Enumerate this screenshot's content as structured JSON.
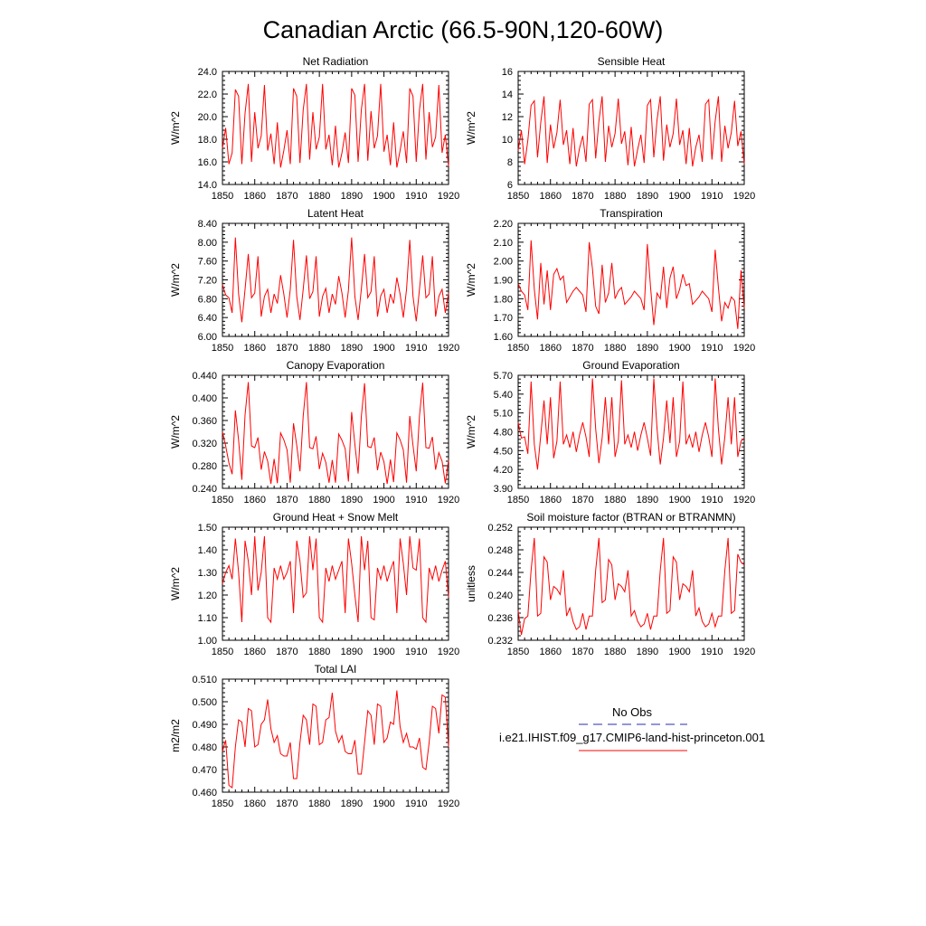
{
  "title": "Canadian Arctic (66.5-90N,120-60W)",
  "colors": {
    "model": "#ff0000",
    "obs": "#2b2bb0",
    "frame": "#000000"
  },
  "legend": {
    "obs_label": "No Obs",
    "model_label": "i.e21.IHIST.f09_g17.CMIP6-land-hist-princeton.001"
  },
  "chart_data": [
    {
      "type": "line",
      "title": "Net Radiation",
      "ylabel": "W/m^2",
      "xlim": [
        1850,
        1920
      ],
      "ylim": [
        14.0,
        24.0
      ],
      "xticks": [
        "1850",
        "1860",
        "1870",
        "1880",
        "1890",
        "1900",
        "1910",
        "1920"
      ],
      "yticks": [
        "14.0",
        "16.0",
        "18.0",
        "20.0",
        "22.0",
        "24.0"
      ],
      "x_start": 1850,
      "series": [
        {
          "values": [
            17.2,
            19.0,
            15.8,
            16.8,
            22.4,
            21.8,
            15.8,
            20.3,
            22.9,
            16.0,
            20.4,
            17.2,
            18.3,
            22.8,
            17.0,
            18.5,
            15.8,
            19.5,
            15.5,
            17.0,
            18.8,
            15.8,
            22.5,
            21.8,
            15.9,
            20.6,
            22.9,
            16.2,
            20.4,
            17.1,
            18.2,
            22.9,
            17.1,
            18.4,
            15.7,
            19.2,
            15.5,
            16.8,
            18.6,
            15.9,
            22.5,
            21.9,
            16.0,
            20.6,
            22.9,
            16.1,
            20.5,
            17.2,
            18.3,
            22.9,
            16.9,
            18.4,
            15.7,
            19.5,
            15.5,
            17.0,
            18.7,
            15.9,
            22.5,
            21.8,
            16.0,
            20.6,
            22.9,
            16.2,
            20.4,
            17.3,
            18.2,
            22.8,
            16.8,
            18.4,
            15.6
          ]
        }
      ]
    },
    {
      "type": "line",
      "title": "Sensible Heat",
      "ylabel": "W/m^2",
      "xlim": [
        1850,
        1920
      ],
      "ylim": [
        6,
        16
      ],
      "xticks": [
        "1850",
        "1860",
        "1870",
        "1880",
        "1890",
        "1900",
        "1910",
        "1920"
      ],
      "yticks": [
        "6",
        "8",
        "10",
        "12",
        "14",
        "16"
      ],
      "x_start": 1850,
      "series": [
        {
          "values": [
            9.0,
            10.8,
            7.8,
            9.9,
            13.0,
            13.4,
            8.4,
            11.5,
            13.8,
            7.9,
            11.3,
            9.2,
            10.6,
            13.5,
            9.5,
            10.8,
            7.8,
            11.0,
            7.6,
            9.2,
            10.3,
            8.0,
            13.1,
            13.5,
            8.3,
            11.6,
            13.8,
            8.0,
            11.2,
            9.3,
            10.5,
            13.6,
            9.6,
            10.7,
            7.7,
            11.1,
            7.6,
            9.1,
            10.4,
            7.9,
            13.0,
            13.5,
            8.4,
            11.7,
            13.8,
            8.1,
            11.3,
            9.3,
            10.5,
            13.6,
            9.5,
            10.8,
            7.8,
            11.0,
            7.6,
            9.3,
            10.4,
            8.0,
            13.1,
            13.5,
            8.2,
            11.6,
            13.8,
            8.0,
            11.2,
            9.2,
            10.6,
            13.4,
            9.4,
            10.7,
            7.8
          ]
        }
      ]
    },
    {
      "type": "line",
      "title": "Latent Heat",
      "ylabel": "W/m^2",
      "xlim": [
        1850,
        1920
      ],
      "ylim": [
        6.0,
        8.4
      ],
      "xticks": [
        "1850",
        "1860",
        "1870",
        "1880",
        "1890",
        "1900",
        "1910",
        "1920"
      ],
      "yticks": [
        "6.00",
        "6.40",
        "6.80",
        "7.20",
        "7.60",
        "8.00",
        "8.40"
      ],
      "x_start": 1850,
      "series": [
        {
          "values": [
            7.1,
            6.88,
            6.82,
            6.5,
            8.1,
            6.9,
            6.3,
            7.0,
            7.75,
            6.82,
            6.92,
            7.7,
            6.42,
            6.85,
            7.0,
            6.5,
            6.9,
            6.7,
            7.3,
            6.9,
            6.4,
            7.0,
            8.05,
            6.85,
            6.35,
            7.0,
            7.72,
            6.8,
            6.95,
            7.7,
            6.42,
            6.85,
            7.02,
            6.5,
            6.9,
            6.68,
            7.28,
            6.92,
            6.4,
            6.98,
            8.1,
            6.85,
            6.35,
            7.0,
            7.75,
            6.82,
            6.95,
            7.7,
            6.42,
            6.86,
            7.0,
            6.5,
            6.9,
            6.7,
            7.25,
            6.9,
            6.4,
            7.0,
            8.05,
            6.85,
            6.32,
            7.0,
            7.72,
            6.82,
            6.9,
            7.7,
            6.42,
            6.85,
            7.0,
            6.5,
            6.92
          ]
        }
      ]
    },
    {
      "type": "line",
      "title": "Transpiration",
      "ylabel": "W/m^2",
      "xlim": [
        1850,
        1920
      ],
      "ylim": [
        1.6,
        2.2
      ],
      "xticks": [
        "1850",
        "1860",
        "1870",
        "1880",
        "1890",
        "1900",
        "1910",
        "1920"
      ],
      "yticks": [
        "1.60",
        "1.70",
        "1.80",
        "1.90",
        "2.00",
        "2.10",
        "2.20"
      ],
      "x_start": 1850,
      "series": [
        {
          "values": [
            1.88,
            1.84,
            1.82,
            1.74,
            2.11,
            1.85,
            1.69,
            1.99,
            1.77,
            1.95,
            1.74,
            1.93,
            1.96,
            1.9,
            1.92,
            1.78,
            1.81,
            1.84,
            1.86,
            1.84,
            1.82,
            1.73,
            2.1,
            1.96,
            1.76,
            1.72,
            1.98,
            1.78,
            1.83,
            1.99,
            1.8,
            1.84,
            1.86,
            1.77,
            1.79,
            1.81,
            1.84,
            1.82,
            1.8,
            1.74,
            2.09,
            1.86,
            1.66,
            1.83,
            1.8,
            1.97,
            1.75,
            1.91,
            1.97,
            1.8,
            1.85,
            1.93,
            1.87,
            1.88,
            1.77,
            1.79,
            1.81,
            1.84,
            1.82,
            1.8,
            1.73,
            2.06,
            1.86,
            1.68,
            1.78,
            1.75,
            1.81,
            1.79,
            1.64,
            1.95,
            1.75
          ]
        }
      ]
    },
    {
      "type": "line",
      "title": "Canopy Evaporation",
      "ylabel": "W/m^2",
      "xlim": [
        1850,
        1920
      ],
      "ylim": [
        0.24,
        0.44
      ],
      "xticks": [
        "1850",
        "1860",
        "1870",
        "1880",
        "1890",
        "1900",
        "1910",
        "1920"
      ],
      "yticks": [
        "0.240",
        "0.280",
        "0.320",
        "0.360",
        "0.400",
        "0.440"
      ],
      "x_start": 1850,
      "series": [
        {
          "values": [
            0.34,
            0.315,
            0.285,
            0.265,
            0.378,
            0.325,
            0.255,
            0.37,
            0.428,
            0.315,
            0.312,
            0.33,
            0.273,
            0.305,
            0.288,
            0.248,
            0.292,
            0.249,
            0.338,
            0.326,
            0.308,
            0.25,
            0.355,
            0.316,
            0.27,
            0.368,
            0.428,
            0.312,
            0.31,
            0.332,
            0.274,
            0.302,
            0.286,
            0.25,
            0.29,
            0.25,
            0.336,
            0.325,
            0.31,
            0.252,
            0.375,
            0.318,
            0.266,
            0.367,
            0.426,
            0.314,
            0.312,
            0.33,
            0.272,
            0.304,
            0.287,
            0.248,
            0.291,
            0.251,
            0.338,
            0.326,
            0.308,
            0.25,
            0.368,
            0.316,
            0.27,
            0.368,
            0.427,
            0.312,
            0.311,
            0.331,
            0.273,
            0.303,
            0.288,
            0.249,
            0.29
          ]
        }
      ]
    },
    {
      "type": "line",
      "title": "Ground Evaporation",
      "ylabel": "W/m^2",
      "xlim": [
        1850,
        1920
      ],
      "ylim": [
        3.9,
        5.7
      ],
      "xticks": [
        "1850",
        "1860",
        "1870",
        "1880",
        "1890",
        "1900",
        "1910",
        "1920"
      ],
      "yticks": [
        "3.90",
        "4.20",
        "4.50",
        "4.80",
        "5.10",
        "5.40",
        "5.70"
      ],
      "x_start": 1850,
      "series": [
        {
          "values": [
            4.95,
            4.7,
            4.72,
            4.45,
            5.6,
            4.6,
            4.2,
            4.75,
            5.3,
            4.6,
            5.35,
            4.38,
            4.65,
            5.6,
            4.6,
            4.75,
            4.55,
            4.8,
            4.48,
            4.75,
            4.95,
            4.72,
            4.4,
            5.65,
            4.85,
            4.3,
            4.7,
            5.35,
            4.6,
            5.35,
            4.4,
            4.65,
            5.62,
            4.6,
            4.75,
            4.55,
            4.8,
            4.5,
            4.75,
            4.95,
            4.7,
            4.42,
            5.65,
            4.85,
            4.28,
            4.7,
            5.3,
            4.62,
            5.35,
            4.4,
            4.65,
            5.6,
            4.6,
            4.75,
            4.55,
            4.8,
            4.48,
            4.75,
            4.95,
            4.72,
            4.4,
            5.65,
            4.85,
            4.28,
            4.72,
            5.35,
            4.6,
            5.35,
            4.4,
            4.65,
            4.7
          ]
        }
      ]
    },
    {
      "type": "line",
      "title": "Ground Heat + Snow Melt",
      "ylabel": "W/m^2",
      "xlim": [
        1850,
        1920
      ],
      "ylim": [
        1.0,
        1.5
      ],
      "xticks": [
        "1850",
        "1860",
        "1870",
        "1880",
        "1890",
        "1900",
        "1910",
        "1920"
      ],
      "yticks": [
        "1.00",
        "1.10",
        "1.20",
        "1.30",
        "1.40",
        "1.50"
      ],
      "x_start": 1850,
      "series": [
        {
          "values": [
            1.25,
            1.3,
            1.33,
            1.27,
            1.45,
            1.3,
            1.08,
            1.44,
            1.35,
            1.2,
            1.46,
            1.22,
            1.3,
            1.46,
            1.1,
            1.08,
            1.32,
            1.27,
            1.33,
            1.27,
            1.3,
            1.35,
            1.12,
            1.44,
            1.35,
            1.19,
            1.21,
            1.46,
            1.31,
            1.45,
            1.1,
            1.08,
            1.32,
            1.26,
            1.33,
            1.27,
            1.31,
            1.35,
            1.12,
            1.45,
            1.34,
            1.2,
            1.08,
            1.46,
            1.31,
            1.44,
            1.1,
            1.09,
            1.32,
            1.27,
            1.33,
            1.26,
            1.31,
            1.35,
            1.12,
            1.45,
            1.34,
            1.2,
            1.46,
            1.32,
            1.31,
            1.45,
            1.1,
            1.08,
            1.32,
            1.27,
            1.33,
            1.26,
            1.31,
            1.35,
            1.19
          ]
        }
      ]
    },
    {
      "type": "line",
      "title": "Soil moisture factor (BTRAN or BTRANMN)",
      "ylabel": "unitless",
      "xlim": [
        1850,
        1920
      ],
      "ylim": [
        0.231,
        0.252
      ],
      "xticks": [
        "1850",
        "1860",
        "1870",
        "1880",
        "1890",
        "1900",
        "1910",
        "1920"
      ],
      "yticks": [
        "0.232",
        "0.236",
        "0.240",
        "0.244",
        "0.248",
        "0.252"
      ],
      "x_start": 1850,
      "series": [
        {
          "values": [
            0.2365,
            0.232,
            0.235,
            0.2355,
            0.244,
            0.25,
            0.2355,
            0.236,
            0.2465,
            0.2455,
            0.2385,
            0.241,
            0.2405,
            0.2395,
            0.244,
            0.2355,
            0.237,
            0.2345,
            0.233,
            0.2335,
            0.236,
            0.233,
            0.2355,
            0.2355,
            0.244,
            0.25,
            0.238,
            0.2385,
            0.246,
            0.245,
            0.2385,
            0.2415,
            0.241,
            0.24,
            0.244,
            0.2355,
            0.2365,
            0.2345,
            0.2335,
            0.234,
            0.236,
            0.233,
            0.2355,
            0.2355,
            0.244,
            0.25,
            0.236,
            0.2365,
            0.2465,
            0.2455,
            0.2385,
            0.2415,
            0.241,
            0.24,
            0.244,
            0.2355,
            0.237,
            0.2345,
            0.2335,
            0.234,
            0.236,
            0.2335,
            0.2355,
            0.2355,
            0.244,
            0.25,
            0.236,
            0.2365,
            0.247,
            0.2455,
            0.245
          ]
        }
      ]
    },
    {
      "type": "line",
      "title": "Total LAI",
      "ylabel": "m2/m2",
      "xlim": [
        1850,
        1920
      ],
      "ylim": [
        0.46,
        0.51
      ],
      "xticks": [
        "1850",
        "1860",
        "1870",
        "1880",
        "1890",
        "1900",
        "1910",
        "1920"
      ],
      "yticks": [
        "0.460",
        "0.470",
        "0.480",
        "0.490",
        "0.500",
        "0.510"
      ],
      "x_start": 1850,
      "series": [
        {
          "values": [
            0.478,
            0.483,
            0.463,
            0.462,
            0.48,
            0.492,
            0.491,
            0.48,
            0.497,
            0.496,
            0.48,
            0.481,
            0.49,
            0.492,
            0.501,
            0.488,
            0.482,
            0.485,
            0.477,
            0.476,
            0.476,
            0.482,
            0.466,
            0.466,
            0.482,
            0.494,
            0.492,
            0.481,
            0.499,
            0.498,
            0.481,
            0.482,
            0.492,
            0.493,
            0.504,
            0.487,
            0.482,
            0.485,
            0.478,
            0.477,
            0.477,
            0.483,
            0.468,
            0.468,
            0.482,
            0.496,
            0.494,
            0.481,
            0.499,
            0.498,
            0.482,
            0.484,
            0.491,
            0.49,
            0.505,
            0.489,
            0.482,
            0.486,
            0.48,
            0.48,
            0.479,
            0.484,
            0.471,
            0.47,
            0.482,
            0.498,
            0.497,
            0.486,
            0.503,
            0.502,
            0.48
          ]
        }
      ]
    }
  ]
}
